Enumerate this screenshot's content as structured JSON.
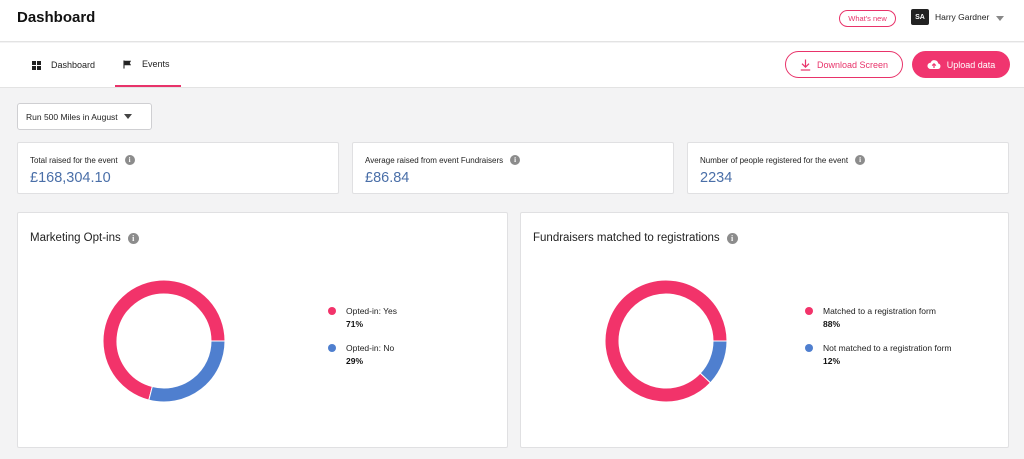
{
  "header": {
    "title": "Dashboard",
    "whats_new": "What's new",
    "user_initials": "SA",
    "user_name": "Harry Gardner"
  },
  "nav": {
    "tabs": [
      {
        "label": "Dashboard",
        "icon": "grid-icon"
      },
      {
        "label": "Events",
        "icon": "flag-icon",
        "active": true
      }
    ],
    "download_label": "Download Screen",
    "upload_label": "Upload data"
  },
  "event_select": {
    "value": "Run 500 Miles in August"
  },
  "stats": [
    {
      "label": "Total raised for the event",
      "value": "£168,304.10"
    },
    {
      "label": "Average raised from event Fundraisers",
      "value": "£86.84"
    },
    {
      "label": "Number of people registered for the event",
      "value": "2234"
    }
  ],
  "colors": {
    "accent": "#f0356f",
    "pink": "#f2336a",
    "blue": "#4f7fcf",
    "stat_value": "#4a6fa8"
  },
  "chart_data": [
    {
      "type": "pie",
      "title": "Marketing Opt-ins",
      "series": [
        {
          "name": "Opted-in: Yes",
          "value": 71,
          "label": "71%",
          "color": "#f2336a"
        },
        {
          "name": "Opted-in: No",
          "value": 29,
          "label": "29%",
          "color": "#4f7fcf"
        }
      ]
    },
    {
      "type": "pie",
      "title": "Fundraisers matched to registrations",
      "series": [
        {
          "name": "Matched to a registration form",
          "value": 88,
          "label": "88%",
          "color": "#f2336a"
        },
        {
          "name": "Not matched to a registration form",
          "value": 12,
          "label": "12%",
          "color": "#4f7fcf"
        }
      ]
    }
  ]
}
